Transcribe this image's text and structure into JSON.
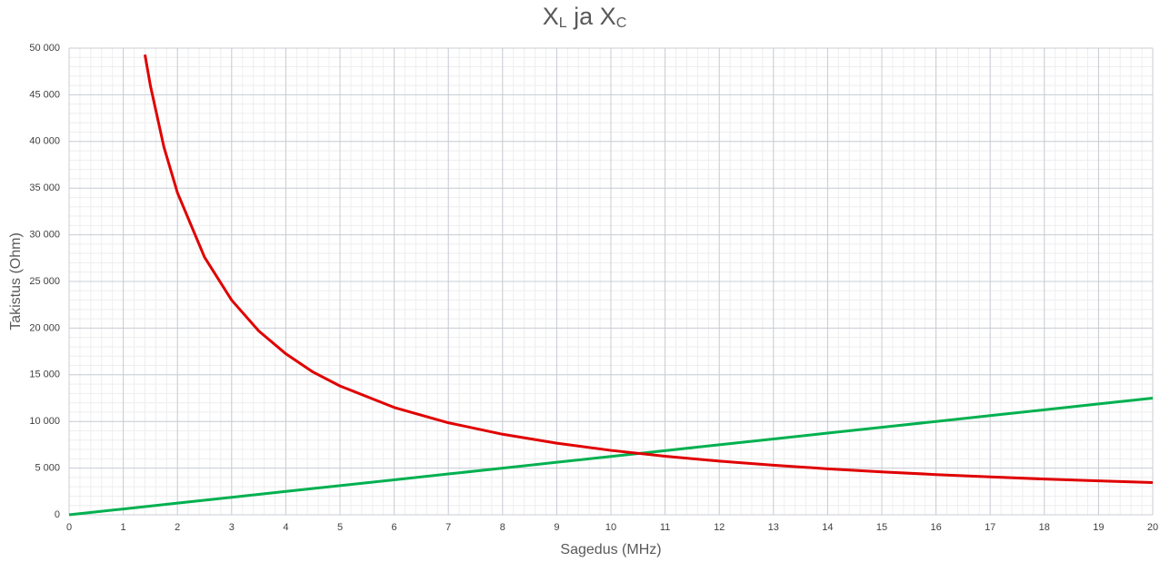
{
  "chart_data": {
    "type": "line",
    "title": [
      {
        "text": "X",
        "sub": "L"
      },
      {
        "text": " ja X",
        "sub": "C"
      }
    ],
    "xlabel": "Sagedus (MHz)",
    "ylabel": "Takistus (Ohm)",
    "xlim": [
      0,
      20
    ],
    "ylim": [
      0,
      50000
    ],
    "xticks": [
      0,
      1,
      2,
      3,
      4,
      5,
      6,
      7,
      8,
      9,
      10,
      11,
      12,
      13,
      14,
      15,
      16,
      17,
      18,
      19,
      20
    ],
    "yticks": [
      0,
      {
        "value": 5000,
        "label": "5 000"
      },
      {
        "value": 10000,
        "label": "10 000"
      },
      {
        "value": 15000,
        "label": "15 000"
      },
      {
        "value": 20000,
        "label": "20 000"
      },
      {
        "value": 25000,
        "label": "25 000"
      },
      {
        "value": 30000,
        "label": "30 000"
      },
      {
        "value": 35000,
        "label": "35 000"
      },
      {
        "value": 40000,
        "label": "40 000"
      },
      {
        "value": 45000,
        "label": "45 000"
      },
      {
        "value": 50000,
        "label": "50 000"
      }
    ],
    "grid": true,
    "xminorstep": 0.2,
    "yminorstep": 1000,
    "series": [
      {
        "color": "#00b050",
        "x": [
          0,
          1,
          2,
          3,
          4,
          5,
          6,
          7,
          8,
          9,
          10,
          11,
          12,
          13,
          14,
          15,
          16,
          17,
          18,
          19,
          20
        ],
        "values": [
          0,
          625,
          1250,
          1875,
          2500,
          3125,
          3750,
          4375,
          5000,
          5625,
          6250,
          6875,
          7500,
          8125,
          8750,
          9375,
          10000,
          10625,
          11250,
          11875,
          12500
        ]
      },
      {
        "color": "#e00000",
        "x": [
          1.4,
          1.5,
          1.75,
          2,
          2.5,
          3,
          3.5,
          4,
          4.5,
          5,
          6,
          7,
          8,
          9,
          10,
          11,
          12,
          13,
          14,
          15,
          16,
          17,
          18,
          19,
          20
        ],
        "values": [
          49300,
          46000,
          39400,
          34500,
          27600,
          23000,
          19700,
          17250,
          15300,
          13800,
          11500,
          9860,
          8630,
          7670,
          6900,
          6270,
          5750,
          5310,
          4930,
          4600,
          4310,
          4060,
          3830,
          3630,
          3450
        ]
      }
    ]
  }
}
